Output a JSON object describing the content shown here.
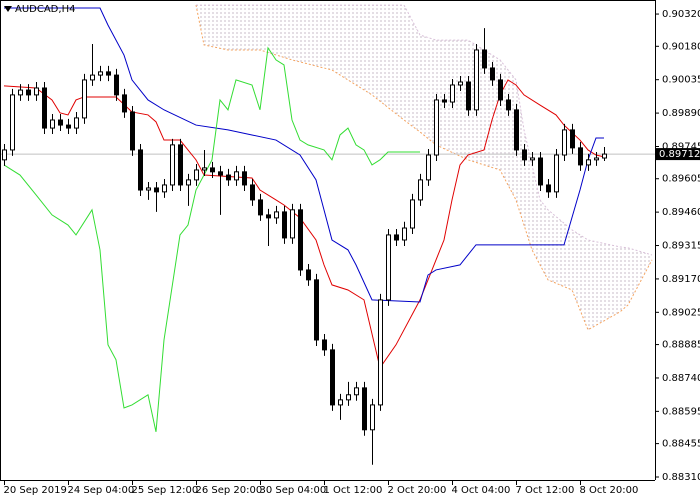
{
  "chart_data": {
    "type": "candlestick",
    "title": "AUDCAD,H4",
    "xlim": [
      -0.5,
      81.375
    ],
    "ylim": [
      0.88297,
      0.90381
    ],
    "yticks": [
      {
        "value": 0.9032,
        "label": "0.90320"
      },
      {
        "value": 0.9018,
        "label": "0.90180"
      },
      {
        "value": 0.90035,
        "label": "0.90035"
      },
      {
        "value": 0.8989,
        "label": "0.89890"
      },
      {
        "value": 0.89745,
        "label": "0.89745"
      },
      {
        "value": 0.89605,
        "label": "0.89605"
      },
      {
        "value": 0.8946,
        "label": "0.89460"
      },
      {
        "value": 0.89315,
        "label": "0.89315"
      },
      {
        "value": 0.8917,
        "label": "0.89170"
      },
      {
        "value": 0.89025,
        "label": "0.89025"
      },
      {
        "value": 0.88885,
        "label": "0.88885"
      },
      {
        "value": 0.8874,
        "label": "0.88740"
      },
      {
        "value": 0.88595,
        "label": "0.88595"
      },
      {
        "value": 0.88455,
        "label": "0.88455"
      },
      {
        "value": 0.8831,
        "label": "0.88310"
      }
    ],
    "xticks": [
      {
        "value": 0,
        "label": "20 Sep 2019"
      },
      {
        "value": 8,
        "label": "24 Sep 04:00"
      },
      {
        "value": 16,
        "label": "25 Sep 12:00"
      },
      {
        "value": 24,
        "label": "26 Sep 20:00"
      },
      {
        "value": 32,
        "label": "30 Sep 04:00"
      },
      {
        "value": 40,
        "label": "1 Oct 12:00"
      },
      {
        "value": 48,
        "label": "2 Oct 20:00"
      },
      {
        "value": 56,
        "label": "4 Oct 04:00"
      },
      {
        "value": 64,
        "label": "7 Oct 12:00"
      },
      {
        "value": 72,
        "label": "8 Oct 20:00"
      }
    ],
    "current_price": {
      "value": 0.89712,
      "label": "0.89712"
    },
    "up_color": "#ffffff",
    "down_color": "#000000",
    "open": [
      0.89687,
      0.8973,
      0.89969,
      0.8999,
      0.89969,
      0.89999,
      0.89825,
      0.8986,
      0.89838,
      0.89825,
      0.89869,
      0.90034,
      0.90055,
      0.90069,
      0.90055,
      0.89969,
      0.89895,
      0.8973,
      0.89556,
      0.89565,
      0.89548,
      0.89578,
      0.89752,
      0.89578,
      0.896,
      0.89643,
      0.89652,
      0.89635,
      0.89621,
      0.896,
      0.89635,
      0.89578,
      0.89513,
      0.89448,
      0.89435,
      0.89461,
      0.89348,
      0.8947,
      0.89209,
      0.89166,
      0.88905,
      0.88862,
      0.88623,
      0.88645,
      0.88667,
      0.88697,
      0.88515,
      0.88623,
      0.89079,
      0.89361,
      0.89339,
      0.89391,
      0.89513,
      0.896,
      0.89708,
      0.89947,
      0.89938,
      0.90012,
      0.90025,
      0.89904,
      0.90164,
      0.90086,
      0.90034,
      0.89947,
      0.89904,
      0.8973,
      0.89687,
      0.89695,
      0.89578,
      0.89548,
      0.89708,
      0.89817,
      0.89739,
      0.89665,
      0.89687,
      0.89695
    ],
    "high": [
      0.89756,
      0.89995,
      0.90016,
      0.90016,
      0.90025,
      0.90025,
      0.89886,
      0.89886,
      0.89865,
      0.89895,
      0.9006,
      0.9019,
      0.90095,
      0.90095,
      0.90082,
      0.89995,
      0.89921,
      0.89756,
      0.89591,
      0.89591,
      0.89604,
      0.89778,
      0.89778,
      0.89626,
      0.89669,
      0.8973,
      0.89678,
      0.89661,
      0.89648,
      0.89661,
      0.89661,
      0.89604,
      0.89539,
      0.89474,
      0.89487,
      0.89487,
      0.89496,
      0.89496,
      0.89235,
      0.89192,
      0.88931,
      0.88888,
      0.88671,
      0.88723,
      0.88723,
      0.88723,
      0.88649,
      0.89105,
      0.89387,
      0.89387,
      0.89418,
      0.89539,
      0.89626,
      0.89734,
      0.89973,
      0.89973,
      0.90038,
      0.90051,
      0.90051,
      0.9019,
      0.90259,
      0.90112,
      0.9006,
      0.89973,
      0.8993,
      0.89756,
      0.89721,
      0.89721,
      0.89604,
      0.89734,
      0.89843,
      0.89843,
      0.89765,
      0.89713,
      0.89721,
      0.89743
    ],
    "low": [
      0.89661,
      0.89704,
      0.89943,
      0.89943,
      0.89943,
      0.89799,
      0.89799,
      0.89812,
      0.89799,
      0.89799,
      0.89843,
      0.90008,
      0.90029,
      0.90029,
      0.89943,
      0.89869,
      0.89704,
      0.8953,
      0.89513,
      0.89461,
      0.89522,
      0.89552,
      0.89552,
      0.89487,
      0.89574,
      0.89617,
      0.89608,
      0.89448,
      0.89574,
      0.89574,
      0.89552,
      0.89487,
      0.89422,
      0.89313,
      0.89409,
      0.89322,
      0.89322,
      0.89183,
      0.8914,
      0.88879,
      0.88836,
      0.88597,
      0.88558,
      0.88619,
      0.88641,
      0.88489,
      0.88363,
      0.88597,
      0.89053,
      0.89313,
      0.89313,
      0.89365,
      0.89487,
      0.89574,
      0.89682,
      0.89912,
      0.89912,
      0.89986,
      0.89878,
      0.89878,
      0.9006,
      0.90008,
      0.89921,
      0.89878,
      0.89704,
      0.89661,
      0.89661,
      0.89552,
      0.89522,
      0.89522,
      0.89682,
      0.89713,
      0.89639,
      0.89639,
      0.89661,
      0.89682
    ],
    "close": [
      0.8973,
      0.89969,
      0.8999,
      0.89969,
      0.89999,
      0.89825,
      0.8986,
      0.89838,
      0.89825,
      0.89869,
      0.90034,
      0.90055,
      0.90069,
      0.90055,
      0.89969,
      0.89895,
      0.8973,
      0.89556,
      0.89565,
      0.89548,
      0.89578,
      0.89752,
      0.89578,
      0.896,
      0.89643,
      0.89652,
      0.89635,
      0.89621,
      0.896,
      0.89635,
      0.89578,
      0.89513,
      0.89448,
      0.89435,
      0.89461,
      0.89348,
      0.8947,
      0.89209,
      0.89166,
      0.88905,
      0.88862,
      0.88623,
      0.88645,
      0.88667,
      0.88697,
      0.88515,
      0.88623,
      0.89079,
      0.89361,
      0.89339,
      0.89391,
      0.89513,
      0.896,
      0.89708,
      0.89947,
      0.89938,
      0.90012,
      0.90025,
      0.89904,
      0.90164,
      0.90086,
      0.90034,
      0.89947,
      0.89904,
      0.8973,
      0.89687,
      0.89695,
      0.89578,
      0.89548,
      0.89708,
      0.89817,
      0.89739,
      0.89665,
      0.89687,
      0.89695,
      0.89712
    ],
    "lines": [
      {
        "color": "#e00000",
        "x": [
          0,
          4,
          6,
          7,
          8,
          9,
          10,
          14,
          16,
          18,
          19,
          20,
          22,
          24,
          25,
          27,
          31,
          32,
          34,
          35,
          37,
          39,
          40,
          41,
          43,
          45,
          47,
          49,
          52,
          55,
          56,
          57,
          58,
          60,
          61,
          62,
          63,
          64,
          65,
          67,
          69,
          70,
          72,
          73,
          74,
          75
        ],
        "values": [
          0.90008,
          0.89999,
          0.89947,
          0.89891,
          0.89882,
          0.89947,
          0.8996,
          0.8996,
          0.89895,
          0.89882,
          0.89852,
          0.89773,
          0.89773,
          0.89687,
          0.89621,
          0.89617,
          0.89608,
          0.89556,
          0.89513,
          0.89491,
          0.89435,
          0.89339,
          0.89231,
          0.89144,
          0.89122,
          0.89079,
          0.88784,
          0.88884,
          0.89079,
          0.89339,
          0.89513,
          0.89665,
          0.89708,
          0.8973,
          0.8986,
          0.89969,
          0.90034,
          0.90012,
          0.89969,
          0.89925,
          0.89882,
          0.89838,
          0.89773,
          0.8973,
          0.89708,
          0.897
        ]
      },
      {
        "color": "#0000c8",
        "x": [
          0,
          12,
          13,
          15,
          16,
          18,
          20,
          24,
          28,
          31,
          34,
          37,
          39,
          40,
          41,
          43,
          44,
          46,
          52,
          53,
          54,
          57,
          59,
          70,
          72,
          73,
          74,
          75
        ],
        "values": [
          0.90346,
          0.90346,
          0.90272,
          0.90142,
          0.90034,
          0.89947,
          0.89904,
          0.89838,
          0.89817,
          0.89795,
          0.89773,
          0.89708,
          0.896,
          0.8947,
          0.89339,
          0.89296,
          0.89231,
          0.89079,
          0.8907,
          0.89187,
          0.89209,
          0.89231,
          0.89318,
          0.89318,
          0.89556,
          0.89687,
          0.89782,
          0.89782
        ]
      },
      {
        "color": "#33dd33",
        "x": [
          0,
          2,
          4,
          6,
          8,
          9,
          11,
          12,
          13,
          14,
          15,
          16,
          18,
          19,
          20,
          22,
          23,
          24,
          25,
          26,
          27,
          28,
          29,
          31,
          32,
          33,
          34,
          35,
          36,
          37,
          38,
          40,
          41,
          42,
          43,
          44,
          45,
          46,
          47,
          48,
          52
        ],
        "values": [
          0.89665,
          0.89621,
          0.89535,
          0.89448,
          0.89404,
          0.89361,
          0.8947,
          0.89296,
          0.88884,
          0.88819,
          0.8861,
          0.88623,
          0.88667,
          0.88506,
          0.88905,
          0.89361,
          0.89404,
          0.89556,
          0.89621,
          0.89687,
          0.89947,
          0.89904,
          0.90034,
          0.90012,
          0.89904,
          0.90173,
          0.90121,
          0.90099,
          0.8986,
          0.89773,
          0.89752,
          0.8973,
          0.89687,
          0.89795,
          0.89825,
          0.89752,
          0.8973,
          0.89665,
          0.89687,
          0.89721,
          0.89721
        ]
      }
    ],
    "cloud": {
      "x": [
        24,
        25,
        28,
        32,
        36,
        41,
        46,
        50,
        52,
        54,
        58,
        62,
        64,
        65,
        66,
        67,
        68,
        71,
        73,
        77,
        78,
        81
      ],
      "fill": "#c9bcc9",
      "span_a": {
        "color": "#f4a460",
        "values": [
          0.90359,
          0.90186,
          0.90164,
          0.90164,
          0.90121,
          0.90077,
          0.89969,
          0.8986,
          0.89808,
          0.89752,
          0.89687,
          0.89643,
          0.89513,
          0.89404,
          0.89296,
          0.89231,
          0.89166,
          0.89122,
          0.88949,
          0.89027,
          0.89057,
          0.89253
        ]
      },
      "span_b": {
        "color": "#d8bfd8",
        "values": [
          0.90359,
          0.90359,
          0.90359,
          0.90359,
          0.90359,
          0.90359,
          0.90359,
          0.90359,
          0.90229,
          0.90207,
          0.90207,
          0.90121,
          0.90034,
          0.89817,
          0.89665,
          0.89513,
          0.8947,
          0.89383,
          0.89339,
          0.89309,
          0.89305,
          0.89274
        ]
      }
    }
  }
}
